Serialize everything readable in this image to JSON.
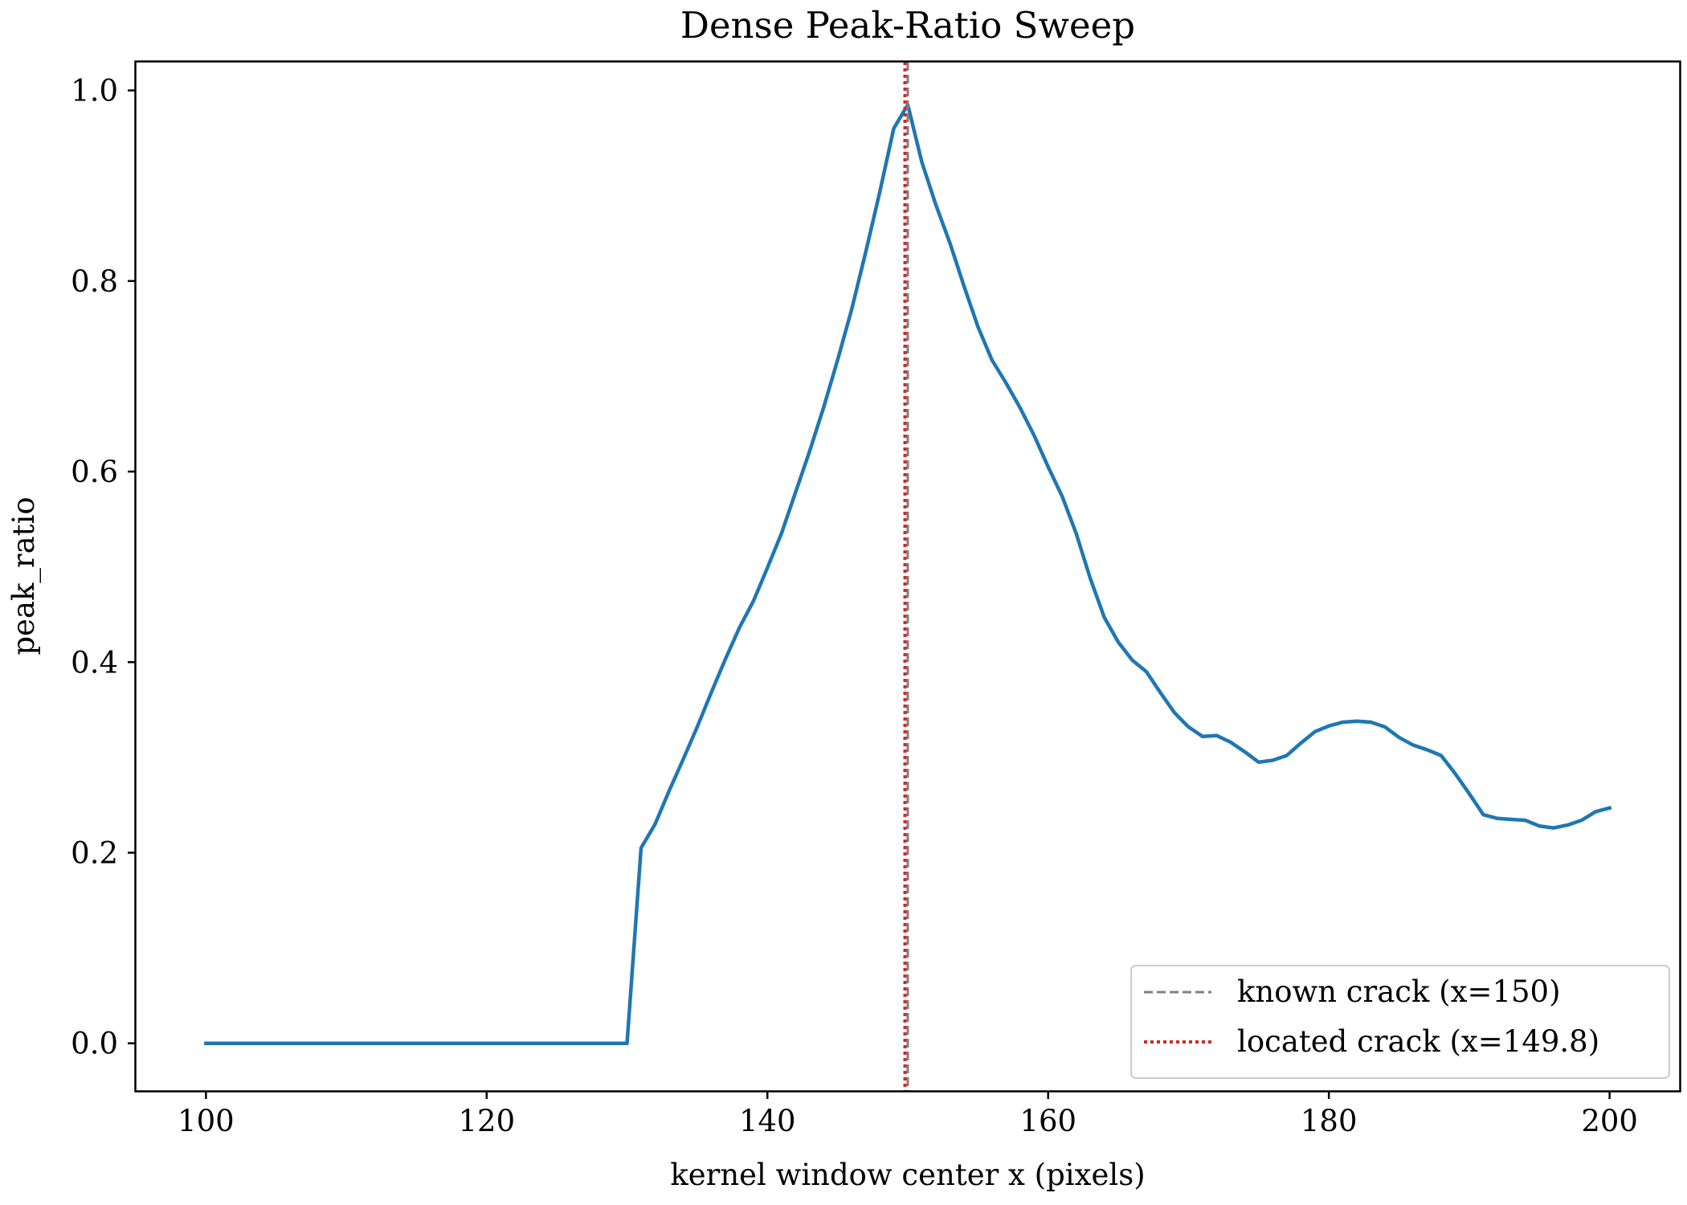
{
  "chart_data": {
    "type": "line",
    "title": "Dense Peak-Ratio Sweep",
    "xlabel": "kernel window center x (pixels)",
    "ylabel": "peak_ratio",
    "xlim": [
      95,
      205
    ],
    "ylim": [
      -0.05,
      1.03
    ],
    "x_ticks": [
      100,
      120,
      140,
      160,
      180,
      200
    ],
    "x_tick_labels": [
      "100",
      "120",
      "140",
      "160",
      "180",
      "200"
    ],
    "y_ticks": [
      0.0,
      0.2,
      0.4,
      0.6,
      0.8,
      1.0
    ],
    "y_tick_labels": [
      "0.0",
      "0.2",
      "0.4",
      "0.6",
      "0.8",
      "1.0"
    ],
    "grid": false,
    "legend_position": "lower-right",
    "series": [
      {
        "color": "#1f77b4",
        "x": [
          100,
          130,
          131,
          132,
          133,
          134,
          135,
          136,
          137,
          138,
          139,
          140,
          141,
          142,
          143,
          144,
          145,
          146,
          147,
          148,
          149,
          150,
          151,
          152,
          153,
          154,
          155,
          156,
          157,
          158,
          159,
          160,
          161,
          162,
          163,
          164,
          165,
          166,
          167,
          168,
          169,
          170,
          171,
          172,
          173,
          174,
          175,
          176,
          177,
          178,
          179,
          180,
          181,
          182,
          183,
          184,
          185,
          186,
          187,
          188,
          189,
          190,
          191,
          192,
          193,
          194,
          195,
          196,
          197,
          198,
          199,
          200
        ],
        "y": [
          0.0,
          0.0,
          0.205,
          0.23,
          0.265,
          0.298,
          0.332,
          0.368,
          0.403,
          0.436,
          0.464,
          0.499,
          0.535,
          0.578,
          0.621,
          0.667,
          0.717,
          0.77,
          0.83,
          0.893,
          0.96,
          0.985,
          0.925,
          0.88,
          0.84,
          0.795,
          0.752,
          0.717,
          0.693,
          0.667,
          0.638,
          0.605,
          0.574,
          0.535,
          0.488,
          0.447,
          0.421,
          0.402,
          0.39,
          0.368,
          0.347,
          0.332,
          0.322,
          0.323,
          0.316,
          0.306,
          0.295,
          0.297,
          0.302,
          0.315,
          0.327,
          0.333,
          0.337,
          0.338,
          0.337,
          0.332,
          0.321,
          0.313,
          0.308,
          0.302,
          0.283,
          0.262,
          0.24,
          0.236,
          0.235,
          0.234,
          0.228,
          0.226,
          0.229,
          0.234,
          0.243,
          0.247
        ]
      }
    ],
    "vlines": [
      {
        "x": 150,
        "color": "#808080",
        "style": "dashed",
        "label": "known crack (x=150)"
      },
      {
        "x": 149.8,
        "color": "#d62728",
        "style": "dotted",
        "label": "located crack (x=149.8)"
      }
    ]
  }
}
